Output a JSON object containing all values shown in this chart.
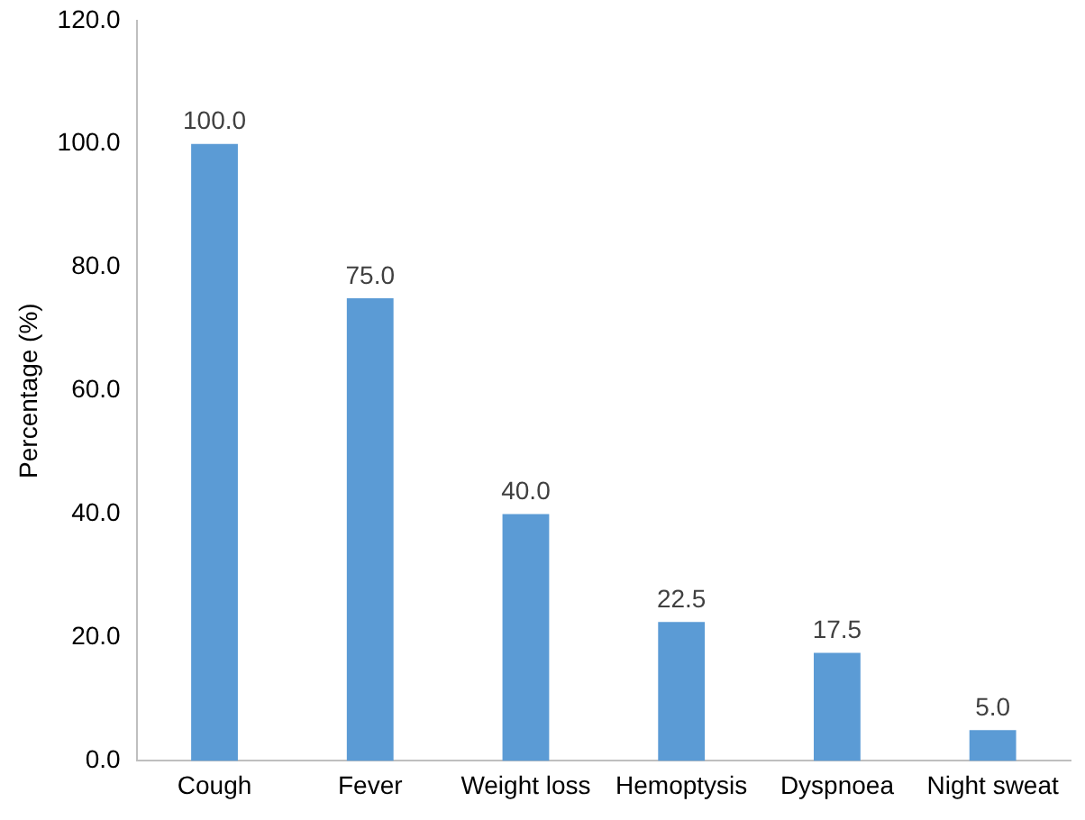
{
  "chart_data": {
    "type": "bar",
    "ylabel": "Percentage (%)",
    "categories": [
      "Cough",
      "Fever",
      "Weight loss",
      "Hemoptysis",
      "Dyspnoea",
      "Night sweat"
    ],
    "values": [
      100,
      75,
      40,
      22.5,
      17.5,
      5
    ],
    "value_labels": [
      "100.0",
      "75.0",
      "40.0",
      "22.5",
      "17.5",
      "5.0"
    ],
    "color": "#5b9bd5",
    "ylim": [
      0,
      120
    ],
    "yticks": [
      {
        "value": 0,
        "label": "0.0"
      },
      {
        "value": 20,
        "label": "20.0"
      },
      {
        "value": 40,
        "label": "40.0"
      },
      {
        "value": 60,
        "label": "60.0"
      },
      {
        "value": 80,
        "label": "80.0"
      },
      {
        "value": 100,
        "label": "100.0"
      },
      {
        "value": 120,
        "label": "120.0"
      }
    ],
    "grid": false,
    "legend": false
  }
}
